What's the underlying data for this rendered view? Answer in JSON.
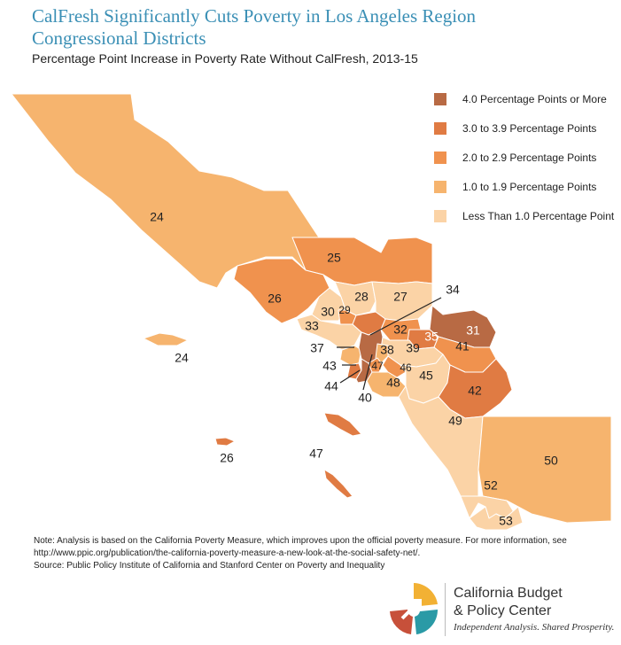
{
  "header": {
    "title_line1": "CalFresh Significantly Cuts Poverty in Los Angeles Region",
    "title_line2": "Congressional Districts",
    "subtitle": "Percentage Point Increase in Poverty Rate Without CalFresh, 2013-15"
  },
  "legend": {
    "items": [
      {
        "label": "4.0 Percentage Points or More",
        "color": "#b86a44"
      },
      {
        "label": "3.0 to 3.9 Percentage Points",
        "color": "#e07b43"
      },
      {
        "label": "2.0 to 2.9 Percentage Points",
        "color": "#f0924e"
      },
      {
        "label": "1.0 to 1.9 Percentage Points",
        "color": "#f6b46e"
      },
      {
        "label": "Less Than 1.0 Percentage Point",
        "color": "#fbd3a6"
      }
    ]
  },
  "districts": {
    "d24": "24",
    "d24_island": "24",
    "d25": "25",
    "d26": "26",
    "d26_island": "26",
    "d27": "27",
    "d28": "28",
    "d29": "29",
    "d30": "30",
    "d31": "31",
    "d32": "32",
    "d33": "33",
    "d34": "34",
    "d35": "35",
    "d37": "37",
    "d38": "38",
    "d39": "39",
    "d40": "40",
    "d41": "41",
    "d42": "42",
    "d43": "43",
    "d44": "44",
    "d45": "45",
    "d46": "46",
    "d47": "47",
    "d47_island": "47",
    "d48": "48",
    "d49": "49",
    "d50": "50",
    "d52": "52",
    "d53": "53"
  },
  "notes": {
    "line1": "Note: Analysis is based on the California Poverty Measure, which improves upon the official poverty measure. For more information, see",
    "line2": "http://www.ppic.org/publication/the-california-poverty-measure-a-new-look-at-the-social-safety-net/.",
    "line3": "Source: Public Policy Institute of California and Stanford Center on Poverty and Inequality"
  },
  "brand": {
    "name_line1": "California Budget",
    "name_line2": "& Policy Center",
    "tagline": "Independent Analysis. Shared Prosperity."
  }
}
